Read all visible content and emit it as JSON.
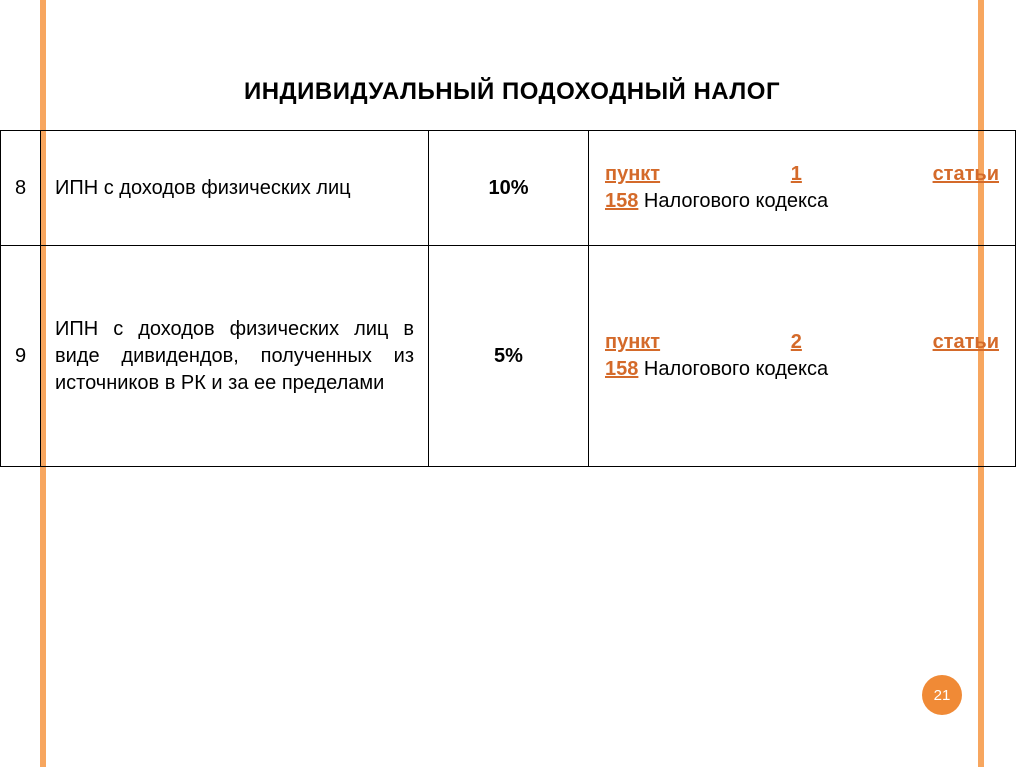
{
  "accent_color": "#f7a65f",
  "link_color": "#d46a2a",
  "title": "ИНДИВИДУАЛЬНЫЙ ПОДОХОДНЫЙ НАЛОГ",
  "rows": [
    {
      "num": "8",
      "desc": "ИПН с доходов физических лиц",
      "rate": "10%",
      "ref_link_parts": [
        "пункт",
        "1",
        "статьи",
        "158"
      ],
      "ref_after": " Налогового кодекса"
    },
    {
      "num": "9",
      "desc": "ИПН с доходов физических лиц в виде дивидендов, полученных из источников в РК и за ее пределами",
      "rate": "5%",
      "ref_link_parts": [
        "пункт",
        "2",
        "статьи",
        "158"
      ],
      "ref_after": " Налогового кодекса"
    }
  ],
  "page_number": "21",
  "badge_bg": "#f08a36"
}
